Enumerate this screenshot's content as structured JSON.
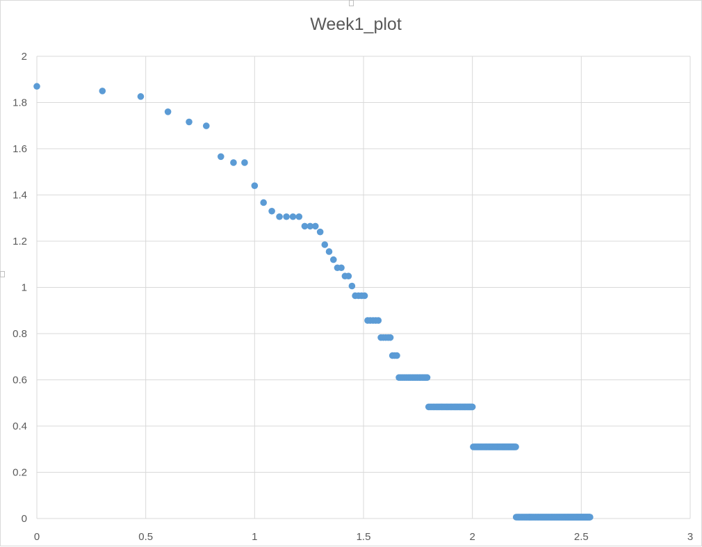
{
  "chart_data": {
    "type": "scatter",
    "title": "Week1_plot",
    "xlabel": "",
    "ylabel": "",
    "xlim": [
      0,
      3
    ],
    "ylim": [
      0,
      2
    ],
    "x_ticks": [
      "0",
      "0.5",
      "1",
      "1.5",
      "2",
      "2.5",
      "3"
    ],
    "y_ticks": [
      "0",
      "0.2",
      "0.4",
      "0.6",
      "0.8",
      "1",
      "1.2",
      "1.4",
      "1.6",
      "1.8",
      "2"
    ],
    "grid": true,
    "legend": "none",
    "marker_color": "#5b9bd5",
    "gridline_color": "#d9d9d9",
    "points": [
      [
        0.0,
        1.87
      ],
      [
        0.301,
        1.85
      ],
      [
        0.477,
        1.826
      ],
      [
        0.602,
        1.76
      ],
      [
        0.699,
        1.716
      ],
      [
        0.778,
        1.699
      ],
      [
        0.845,
        1.566
      ],
      [
        0.903,
        1.54
      ],
      [
        0.954,
        1.54
      ],
      [
        1.0,
        1.44
      ],
      [
        1.041,
        1.367
      ],
      [
        1.079,
        1.33
      ],
      [
        1.114,
        1.306
      ],
      [
        1.146,
        1.306
      ],
      [
        1.176,
        1.306
      ],
      [
        1.204,
        1.306
      ],
      [
        1.23,
        1.265
      ],
      [
        1.255,
        1.265
      ],
      [
        1.279,
        1.265
      ],
      [
        1.301,
        1.24
      ],
      [
        1.322,
        1.185
      ],
      [
        1.342,
        1.155
      ],
      [
        1.362,
        1.12
      ],
      [
        1.38,
        1.085
      ],
      [
        1.398,
        1.085
      ],
      [
        1.415,
        1.049
      ],
      [
        1.431,
        1.049
      ],
      [
        1.447,
        1.006
      ],
      [
        1.462,
        0.964
      ],
      [
        1.477,
        0.964
      ],
      [
        1.491,
        0.964
      ],
      [
        1.505,
        0.964
      ],
      [
        1.519,
        0.857
      ],
      [
        1.531,
        0.857
      ],
      [
        1.544,
        0.857
      ],
      [
        1.556,
        0.857
      ],
      [
        1.568,
        0.857
      ],
      [
        1.58,
        0.783
      ],
      [
        1.591,
        0.783
      ],
      [
        1.602,
        0.783
      ],
      [
        1.613,
        0.783
      ],
      [
        1.623,
        0.783
      ],
      [
        1.633,
        0.705
      ],
      [
        1.643,
        0.705
      ],
      [
        1.653,
        0.705
      ],
      [
        1.663,
        0.61
      ],
      [
        1.672,
        0.61
      ],
      [
        1.681,
        0.61
      ],
      [
        1.69,
        0.61
      ],
      [
        1.699,
        0.61
      ],
      [
        1.708,
        0.61
      ],
      [
        1.716,
        0.61
      ],
      [
        1.724,
        0.61
      ],
      [
        1.732,
        0.61
      ],
      [
        1.74,
        0.61
      ],
      [
        1.748,
        0.61
      ],
      [
        1.756,
        0.61
      ],
      [
        1.763,
        0.61
      ],
      [
        1.771,
        0.61
      ],
      [
        1.778,
        0.61
      ],
      [
        1.785,
        0.61
      ],
      [
        1.792,
        0.61
      ],
      [
        1.799,
        0.483
      ],
      [
        1.806,
        0.483
      ],
      [
        1.813,
        0.483
      ],
      [
        1.82,
        0.483
      ],
      [
        1.826,
        0.483
      ],
      [
        1.833,
        0.483
      ],
      [
        1.839,
        0.483
      ],
      [
        1.845,
        0.483
      ],
      [
        1.851,
        0.483
      ],
      [
        1.857,
        0.483
      ],
      [
        1.863,
        0.483
      ],
      [
        1.869,
        0.483
      ],
      [
        1.875,
        0.483
      ],
      [
        1.881,
        0.483
      ],
      [
        1.886,
        0.483
      ],
      [
        1.892,
        0.483
      ],
      [
        1.898,
        0.483
      ],
      [
        1.903,
        0.483
      ],
      [
        1.908,
        0.483
      ],
      [
        1.914,
        0.483
      ],
      [
        1.919,
        0.483
      ],
      [
        1.924,
        0.483
      ],
      [
        1.929,
        0.483
      ],
      [
        1.934,
        0.483
      ],
      [
        1.94,
        0.483
      ],
      [
        1.944,
        0.483
      ],
      [
        1.949,
        0.483
      ],
      [
        1.954,
        0.483
      ],
      [
        1.959,
        0.483
      ],
      [
        1.964,
        0.483
      ],
      [
        1.968,
        0.483
      ],
      [
        1.973,
        0.483
      ],
      [
        1.978,
        0.483
      ],
      [
        1.982,
        0.483
      ],
      [
        1.987,
        0.483
      ],
      [
        1.991,
        0.483
      ],
      [
        1.996,
        0.483
      ],
      [
        2.0,
        0.483
      ],
      [
        2.004,
        0.31
      ],
      [
        2.009,
        0.31
      ],
      [
        2.013,
        0.31
      ],
      [
        2.017,
        0.31
      ],
      [
        2.021,
        0.31
      ],
      [
        2.025,
        0.31
      ],
      [
        2.029,
        0.31
      ],
      [
        2.033,
        0.31
      ],
      [
        2.037,
        0.31
      ],
      [
        2.041,
        0.31
      ],
      [
        2.045,
        0.31
      ],
      [
        2.049,
        0.31
      ],
      [
        2.053,
        0.31
      ],
      [
        2.057,
        0.31
      ],
      [
        2.061,
        0.31
      ],
      [
        2.064,
        0.31
      ],
      [
        2.068,
        0.31
      ],
      [
        2.072,
        0.31
      ],
      [
        2.076,
        0.31
      ],
      [
        2.079,
        0.31
      ],
      [
        2.083,
        0.31
      ],
      [
        2.086,
        0.31
      ],
      [
        2.09,
        0.31
      ],
      [
        2.093,
        0.31
      ],
      [
        2.097,
        0.31
      ],
      [
        2.1,
        0.31
      ],
      [
        2.104,
        0.31
      ],
      [
        2.107,
        0.31
      ],
      [
        2.111,
        0.31
      ],
      [
        2.114,
        0.31
      ],
      [
        2.117,
        0.31
      ],
      [
        2.121,
        0.31
      ],
      [
        2.124,
        0.31
      ],
      [
        2.127,
        0.31
      ],
      [
        2.13,
        0.31
      ],
      [
        2.134,
        0.31
      ],
      [
        2.137,
        0.31
      ],
      [
        2.14,
        0.31
      ],
      [
        2.143,
        0.31
      ],
      [
        2.146,
        0.31
      ],
      [
        2.149,
        0.31
      ],
      [
        2.152,
        0.31
      ],
      [
        2.155,
        0.31
      ],
      [
        2.158,
        0.31
      ],
      [
        2.161,
        0.31
      ],
      [
        2.164,
        0.31
      ],
      [
        2.167,
        0.31
      ],
      [
        2.17,
        0.31
      ],
      [
        2.173,
        0.31
      ],
      [
        2.176,
        0.31
      ],
      [
        2.179,
        0.31
      ],
      [
        2.182,
        0.31
      ],
      [
        2.185,
        0.31
      ],
      [
        2.188,
        0.31
      ],
      [
        2.19,
        0.31
      ],
      [
        2.193,
        0.31
      ],
      [
        2.196,
        0.31
      ],
      [
        2.199,
        0.31
      ],
      [
        2.201,
        0.006
      ],
      [
        2.204,
        0.006
      ],
      [
        2.207,
        0.006
      ],
      [
        2.21,
        0.006
      ],
      [
        2.212,
        0.006
      ],
      [
        2.215,
        0.006
      ],
      [
        2.217,
        0.006
      ],
      [
        2.22,
        0.006
      ],
      [
        2.223,
        0.006
      ],
      [
        2.225,
        0.006
      ],
      [
        2.228,
        0.006
      ],
      [
        2.23,
        0.006
      ],
      [
        2.233,
        0.006
      ],
      [
        2.236,
        0.006
      ],
      [
        2.238,
        0.006
      ],
      [
        2.241,
        0.006
      ],
      [
        2.243,
        0.006
      ],
      [
        2.246,
        0.006
      ],
      [
        2.248,
        0.006
      ],
      [
        2.25,
        0.006
      ],
      [
        2.253,
        0.006
      ],
      [
        2.255,
        0.006
      ],
      [
        2.258,
        0.006
      ],
      [
        2.26,
        0.006
      ],
      [
        2.262,
        0.006
      ],
      [
        2.265,
        0.006
      ],
      [
        2.267,
        0.006
      ],
      [
        2.27,
        0.006
      ],
      [
        2.272,
        0.006
      ],
      [
        2.274,
        0.006
      ],
      [
        2.276,
        0.006
      ],
      [
        2.279,
        0.006
      ],
      [
        2.281,
        0.006
      ],
      [
        2.283,
        0.006
      ],
      [
        2.286,
        0.006
      ],
      [
        2.288,
        0.006
      ],
      [
        2.29,
        0.006
      ],
      [
        2.292,
        0.006
      ],
      [
        2.294,
        0.006
      ],
      [
        2.297,
        0.006
      ],
      [
        2.299,
        0.006
      ],
      [
        2.301,
        0.006
      ],
      [
        2.303,
        0.006
      ],
      [
        2.305,
        0.006
      ],
      [
        2.307,
        0.006
      ],
      [
        2.31,
        0.006
      ],
      [
        2.312,
        0.006
      ],
      [
        2.314,
        0.006
      ],
      [
        2.316,
        0.006
      ],
      [
        2.318,
        0.006
      ],
      [
        2.32,
        0.006
      ],
      [
        2.322,
        0.006
      ],
      [
        2.324,
        0.006
      ],
      [
        2.326,
        0.006
      ],
      [
        2.328,
        0.006
      ],
      [
        2.33,
        0.006
      ],
      [
        2.332,
        0.006
      ],
      [
        2.334,
        0.006
      ],
      [
        2.336,
        0.006
      ],
      [
        2.338,
        0.006
      ],
      [
        2.34,
        0.006
      ],
      [
        2.342,
        0.006
      ],
      [
        2.344,
        0.006
      ],
      [
        2.346,
        0.006
      ],
      [
        2.348,
        0.006
      ],
      [
        2.35,
        0.006
      ],
      [
        2.352,
        0.006
      ],
      [
        2.354,
        0.006
      ],
      [
        2.356,
        0.006
      ],
      [
        2.358,
        0.006
      ],
      [
        2.36,
        0.006
      ],
      [
        2.362,
        0.006
      ],
      [
        2.364,
        0.006
      ],
      [
        2.365,
        0.006
      ],
      [
        2.367,
        0.006
      ],
      [
        2.369,
        0.006
      ],
      [
        2.371,
        0.006
      ],
      [
        2.373,
        0.006
      ],
      [
        2.375,
        0.006
      ],
      [
        2.377,
        0.006
      ],
      [
        2.378,
        0.006
      ],
      [
        2.38,
        0.006
      ],
      [
        2.382,
        0.006
      ],
      [
        2.384,
        0.006
      ],
      [
        2.386,
        0.006
      ],
      [
        2.387,
        0.006
      ],
      [
        2.389,
        0.006
      ],
      [
        2.391,
        0.006
      ],
      [
        2.393,
        0.006
      ],
      [
        2.394,
        0.006
      ],
      [
        2.396,
        0.006
      ],
      [
        2.398,
        0.006
      ],
      [
        2.4,
        0.006
      ],
      [
        2.401,
        0.006
      ],
      [
        2.403,
        0.006
      ],
      [
        2.405,
        0.006
      ],
      [
        2.407,
        0.006
      ],
      [
        2.408,
        0.006
      ],
      [
        2.41,
        0.006
      ],
      [
        2.412,
        0.006
      ],
      [
        2.413,
        0.006
      ],
      [
        2.415,
        0.006
      ],
      [
        2.417,
        0.006
      ],
      [
        2.418,
        0.006
      ],
      [
        2.42,
        0.006
      ],
      [
        2.422,
        0.006
      ],
      [
        2.423,
        0.006
      ],
      [
        2.425,
        0.006
      ],
      [
        2.427,
        0.006
      ],
      [
        2.428,
        0.006
      ],
      [
        2.43,
        0.006
      ],
      [
        2.431,
        0.006
      ],
      [
        2.433,
        0.006
      ],
      [
        2.435,
        0.006
      ],
      [
        2.436,
        0.006
      ],
      [
        2.438,
        0.006
      ],
      [
        2.439,
        0.006
      ],
      [
        2.441,
        0.006
      ],
      [
        2.442,
        0.006
      ],
      [
        2.444,
        0.006
      ],
      [
        2.446,
        0.006
      ],
      [
        2.447,
        0.006
      ],
      [
        2.449,
        0.006
      ],
      [
        2.45,
        0.006
      ],
      [
        2.452,
        0.006
      ],
      [
        2.453,
        0.006
      ],
      [
        2.455,
        0.006
      ],
      [
        2.456,
        0.006
      ],
      [
        2.458,
        0.006
      ],
      [
        2.459,
        0.006
      ],
      [
        2.461,
        0.006
      ],
      [
        2.462,
        0.006
      ],
      [
        2.464,
        0.006
      ],
      [
        2.465,
        0.006
      ],
      [
        2.467,
        0.006
      ],
      [
        2.468,
        0.006
      ],
      [
        2.47,
        0.006
      ],
      [
        2.471,
        0.006
      ],
      [
        2.473,
        0.006
      ],
      [
        2.474,
        0.006
      ],
      [
        2.476,
        0.006
      ],
      [
        2.477,
        0.006
      ],
      [
        2.479,
        0.006
      ],
      [
        2.48,
        0.006
      ],
      [
        2.481,
        0.006
      ],
      [
        2.483,
        0.006
      ],
      [
        2.484,
        0.006
      ],
      [
        2.486,
        0.006
      ],
      [
        2.487,
        0.006
      ],
      [
        2.489,
        0.006
      ],
      [
        2.49,
        0.006
      ],
      [
        2.491,
        0.006
      ],
      [
        2.493,
        0.006
      ],
      [
        2.494,
        0.006
      ],
      [
        2.496,
        0.006
      ],
      [
        2.497,
        0.006
      ],
      [
        2.498,
        0.006
      ],
      [
        2.5,
        0.006
      ],
      [
        2.501,
        0.006
      ],
      [
        2.502,
        0.006
      ],
      [
        2.504,
        0.006
      ],
      [
        2.505,
        0.006
      ],
      [
        2.507,
        0.006
      ],
      [
        2.508,
        0.006
      ],
      [
        2.509,
        0.006
      ],
      [
        2.511,
        0.006
      ],
      [
        2.512,
        0.006
      ],
      [
        2.513,
        0.006
      ],
      [
        2.515,
        0.006
      ],
      [
        2.516,
        0.006
      ],
      [
        2.517,
        0.006
      ],
      [
        2.519,
        0.006
      ],
      [
        2.52,
        0.006
      ],
      [
        2.521,
        0.006
      ],
      [
        2.522,
        0.006
      ],
      [
        2.524,
        0.006
      ],
      [
        2.525,
        0.006
      ],
      [
        2.526,
        0.006
      ],
      [
        2.528,
        0.006
      ],
      [
        2.529,
        0.006
      ],
      [
        2.53,
        0.006
      ],
      [
        2.531,
        0.006
      ],
      [
        2.533,
        0.006
      ],
      [
        2.534,
        0.006
      ],
      [
        2.535,
        0.006
      ],
      [
        2.537,
        0.006
      ],
      [
        2.538,
        0.006
      ],
      [
        2.539,
        0.006
      ],
      [
        2.54,
        0.006
      ]
    ]
  }
}
